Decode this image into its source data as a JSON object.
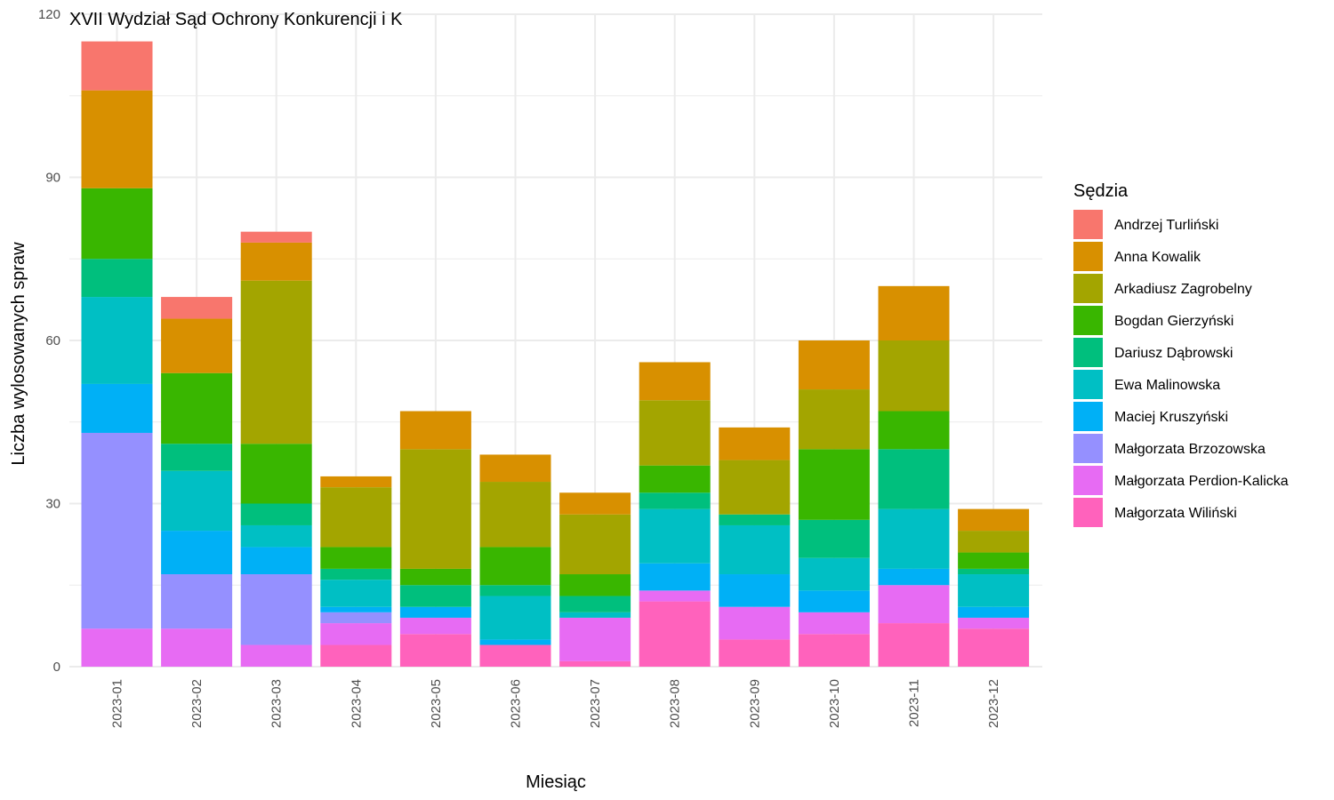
{
  "chart_data": {
    "type": "bar",
    "stacked": true,
    "title": "XVII Wydział Sąd Ochrony Konkurencji i K",
    "xlabel": "Miesiąc",
    "ylabel": "Liczba wylosowanych spraw",
    "ylim": [
      0,
      120
    ],
    "yticks": [
      0,
      30,
      60,
      90,
      120
    ],
    "grid": true,
    "legend_title": "Sędzia",
    "legend_position": "right",
    "categories": [
      "2023-01",
      "2023-02",
      "2023-03",
      "2023-04",
      "2023-05",
      "2023-06",
      "2023-07",
      "2023-08",
      "2023-09",
      "2023-10",
      "2023-11",
      "2023-12"
    ],
    "series": [
      {
        "name": "Andrzej Turliński",
        "color": "#F8766D",
        "values": [
          9,
          4,
          2,
          0,
          0,
          0,
          0,
          0,
          0,
          0,
          0,
          0
        ]
      },
      {
        "name": "Anna Kowalik",
        "color": "#D89000",
        "values": [
          18,
          10,
          7,
          2,
          7,
          5,
          4,
          7,
          6,
          9,
          10,
          4
        ]
      },
      {
        "name": "Arkadiusz Zagrobelny",
        "color": "#A3A500",
        "values": [
          0,
          0,
          30,
          11,
          22,
          12,
          11,
          12,
          10,
          11,
          13,
          4
        ]
      },
      {
        "name": "Bogdan Gierzyński",
        "color": "#39B600",
        "values": [
          13,
          13,
          11,
          4,
          3,
          7,
          4,
          5,
          0,
          13,
          7,
          3
        ]
      },
      {
        "name": "Dariusz Dąbrowski",
        "color": "#00BF7D",
        "values": [
          7,
          5,
          4,
          2,
          4,
          2,
          3,
          3,
          2,
          7,
          11,
          1
        ]
      },
      {
        "name": "Ewa Malinowska",
        "color": "#00BFC4",
        "values": [
          16,
          11,
          4,
          5,
          0,
          8,
          1,
          10,
          9,
          6,
          11,
          6
        ]
      },
      {
        "name": "Maciej Kruszyński",
        "color": "#00B0F6",
        "values": [
          9,
          8,
          5,
          1,
          2,
          1,
          0,
          5,
          6,
          4,
          3,
          2
        ]
      },
      {
        "name": "Małgorzata Brzozowska",
        "color": "#9590FF",
        "values": [
          36,
          10,
          13,
          2,
          0,
          0,
          0,
          0,
          0,
          0,
          0,
          0
        ]
      },
      {
        "name": "Małgorzata Perdion-Kalicka",
        "color": "#E76BF3",
        "values": [
          7,
          7,
          4,
          4,
          3,
          0,
          8,
          2,
          6,
          4,
          7,
          2
        ]
      },
      {
        "name": "Małgorzata Wiliński",
        "color": "#FF62BC",
        "values": [
          0,
          0,
          0,
          4,
          6,
          4,
          1,
          12,
          5,
          6,
          8,
          7
        ]
      }
    ]
  }
}
